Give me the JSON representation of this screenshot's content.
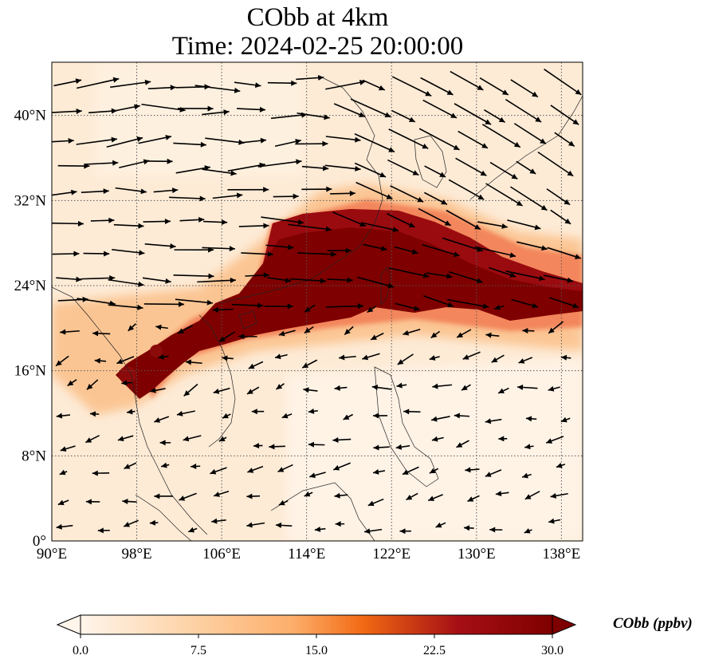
{
  "figure": {
    "title_line1": "CObb at 4km",
    "title_line2": "Time: 2024-02-25 20:00:00"
  },
  "map": {
    "lon_range": [
      90,
      140
    ],
    "lat_range": [
      0,
      45
    ],
    "lon_ticks": [
      {
        "value": 90,
        "label": "90°E"
      },
      {
        "value": 98,
        "label": "98°E"
      },
      {
        "value": 106,
        "label": "106°E"
      },
      {
        "value": 114,
        "label": "114°E"
      },
      {
        "value": 122,
        "label": "122°E"
      },
      {
        "value": 130,
        "label": "130°E"
      },
      {
        "value": 138,
        "label": "138°E"
      }
    ],
    "lat_ticks": [
      {
        "value": 0,
        "label": "0°"
      },
      {
        "value": 8,
        "label": "8°N"
      },
      {
        "value": 16,
        "label": "16°N"
      },
      {
        "value": 24,
        "label": "24°N"
      },
      {
        "value": 32,
        "label": "32°N"
      },
      {
        "value": 40,
        "label": "40°N"
      }
    ],
    "gridlines": true,
    "field": "CObb concentration",
    "plume_core_lonlat": [
      [
        100.5,
        15
      ],
      [
        102,
        17
      ],
      [
        105,
        18.5
      ],
      [
        108,
        21
      ],
      [
        111,
        23
      ],
      [
        113,
        25
      ],
      [
        115,
        27
      ],
      [
        120,
        28.5
      ],
      [
        125,
        27.5
      ],
      [
        130,
        25.5
      ],
      [
        138,
        23
      ]
    ]
  },
  "colorbar": {
    "label": "CObb (ppbv)",
    "min": 0.0,
    "max": 30.0,
    "extend": "both",
    "ticks": [
      {
        "value": 0.0,
        "label": "0.0"
      },
      {
        "value": 7.5,
        "label": "7.5"
      },
      {
        "value": 15.0,
        "label": "15.0"
      },
      {
        "value": 22.5,
        "label": "22.5"
      },
      {
        "value": 30.0,
        "label": "30.0"
      }
    ],
    "colors": [
      "#fff5eb",
      "#fdd0a2",
      "#fd8d3c",
      "#d94801",
      "#a50f15",
      "#7f0000"
    ]
  }
}
